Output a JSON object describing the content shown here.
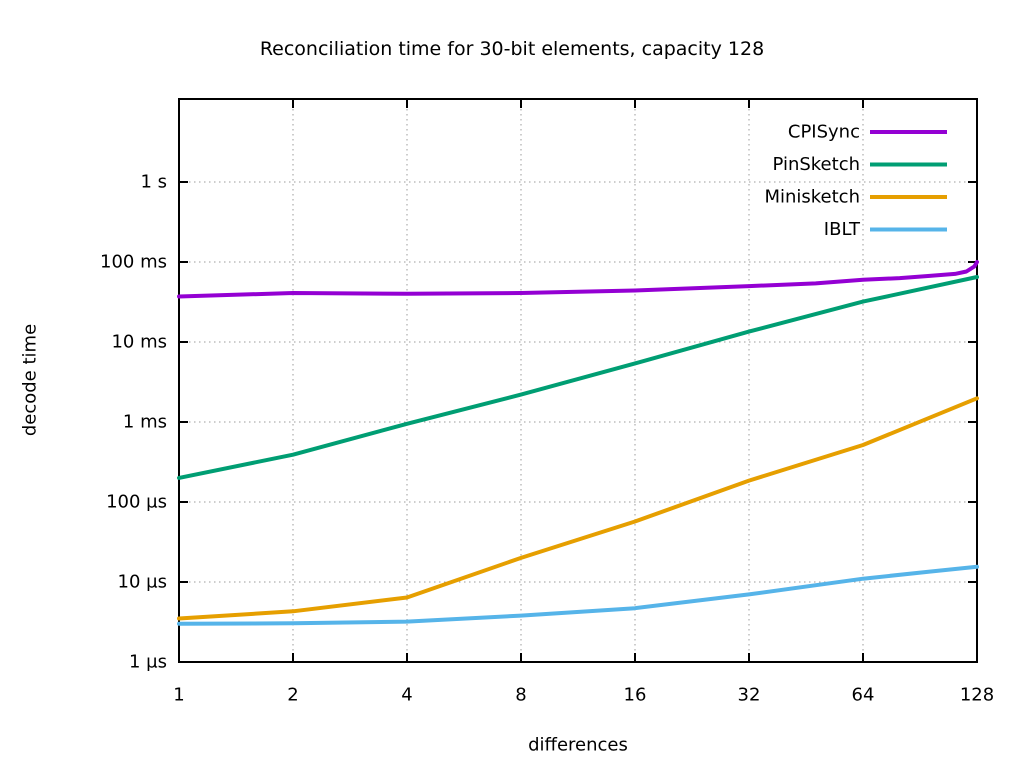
{
  "chart_data": {
    "type": "line",
    "title": "Reconciliation time for 30-bit elements, capacity 128",
    "xlabel": "differences",
    "ylabel": "decode time",
    "x_scale": "log2",
    "y_scale": "log10",
    "grid": true,
    "legend_position": "top-right-inside",
    "x_ticks": [
      1,
      2,
      4,
      8,
      16,
      32,
      64,
      128
    ],
    "xlim": [
      1,
      128
    ],
    "y_unit": "microseconds",
    "ylim_us": [
      1,
      11000000
    ],
    "y_ticks": [
      {
        "value_us": 1,
        "label": "1 µs"
      },
      {
        "value_us": 10,
        "label": "10 µs"
      },
      {
        "value_us": 100,
        "label": "100 µs"
      },
      {
        "value_us": 1000,
        "label": "1 ms"
      },
      {
        "value_us": 10000,
        "label": "10 ms"
      },
      {
        "value_us": 100000,
        "label": "100 ms"
      },
      {
        "value_us": 1000000,
        "label": "1 s"
      }
    ],
    "colors": {
      "axis": "#000000",
      "grid": "#9b9b9b",
      "text": "#000000"
    },
    "series": [
      {
        "name": "CPISync",
        "color": "#9400D3",
        "points_x_us": [
          [
            1,
            37000
          ],
          [
            2,
            41000
          ],
          [
            4,
            40000
          ],
          [
            8,
            41000
          ],
          [
            16,
            44000
          ],
          [
            32,
            50000
          ],
          [
            48,
            54000
          ],
          [
            64,
            60000
          ],
          [
            80,
            63000
          ],
          [
            96,
            67000
          ],
          [
            112,
            71000
          ],
          [
            120,
            76000
          ],
          [
            126,
            88000
          ],
          [
            128,
            100000
          ]
        ]
      },
      {
        "name": "PinSketch",
        "color": "#009E73",
        "points_x_us": [
          [
            1,
            200
          ],
          [
            2,
            390
          ],
          [
            4,
            950
          ],
          [
            8,
            2200
          ],
          [
            16,
            5400
          ],
          [
            32,
            13500
          ],
          [
            64,
            32000
          ],
          [
            128,
            65000
          ]
        ]
      },
      {
        "name": "Minisketch",
        "color": "#E69F00",
        "points_x_us": [
          [
            1,
            3.5
          ],
          [
            2,
            4.3
          ],
          [
            4,
            6.4
          ],
          [
            8,
            20
          ],
          [
            16,
            57
          ],
          [
            32,
            185
          ],
          [
            64,
            516
          ],
          [
            128,
            1980
          ]
        ]
      },
      {
        "name": "IBLT",
        "color": "#56B4E9",
        "points_x_us": [
          [
            1,
            3.0
          ],
          [
            2,
            3.05
          ],
          [
            4,
            3.2
          ],
          [
            8,
            3.8
          ],
          [
            16,
            4.7
          ],
          [
            32,
            7.0
          ],
          [
            64,
            11
          ],
          [
            96,
            13.5
          ],
          [
            128,
            15.5
          ]
        ]
      }
    ]
  }
}
